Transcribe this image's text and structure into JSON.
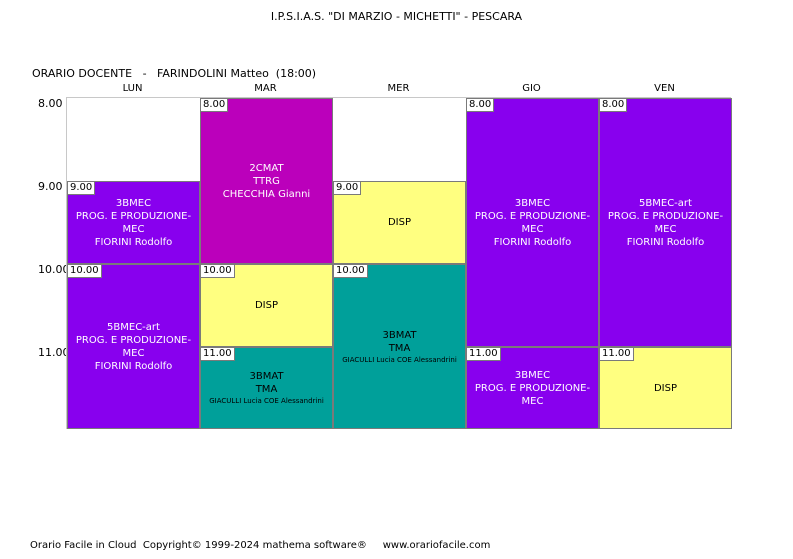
{
  "header": {
    "school": "I.P.S.I.A.S. \"DI MARZIO - MICHETTI\" - PESCARA",
    "teacher_line": "ORARIO DOCENTE   -   FARINDOLINI Matteo  (18:00)"
  },
  "days": [
    "LUN",
    "MAR",
    "MER",
    "GIO",
    "VEN"
  ],
  "times": [
    "8.00",
    "9.00",
    "10.00",
    "11.00"
  ],
  "cells": [
    {
      "start": "9.00",
      "line1": "3BMEC",
      "line2": "PROG. E PRODUZIONE-MEC",
      "line3": "FIORINI Rodolfo",
      "color": "purple"
    },
    {
      "start": "10.00",
      "line1": "5BMEC-art",
      "line2": "PROG. E PRODUZIONE-MEC",
      "line3": "FIORINI Rodolfo",
      "color": "purple"
    },
    {
      "start": "8.00",
      "line1": "2CMAT",
      "line2": "TTRG",
      "line3": "CHECCHIA Gianni",
      "color": "magenta"
    },
    {
      "start": "10.00",
      "line1": "DISP",
      "line2": "",
      "line3": "",
      "color": "yellow"
    },
    {
      "start": "11.00",
      "line1": "3BMAT",
      "line2": "TMA",
      "line3": "GIACULLI Lucia COE Alessandrini",
      "color": "teal"
    },
    {
      "start": "9.00",
      "line1": "DISP",
      "line2": "",
      "line3": "",
      "color": "yellow"
    },
    {
      "start": "10.00",
      "line1": "3BMAT",
      "line2": "TMA",
      "line3": "GIACULLI Lucia COE Alessandrini",
      "color": "teal"
    },
    {
      "start": "8.00",
      "line1": "3BMEC",
      "line2": "PROG. E PRODUZIONE-MEC",
      "line3": "FIORINI Rodolfo",
      "color": "purple"
    },
    {
      "start": "11.00",
      "line1": "3BMEC",
      "line2": "PROG. E PRODUZIONE-MEC",
      "line3": "",
      "color": "purple"
    },
    {
      "start": "8.00",
      "line1": "5BMEC-art",
      "line2": "PROG. E PRODUZIONE-MEC",
      "line3": "FIORINI Rodolfo",
      "color": "purple"
    },
    {
      "start": "11.00",
      "line1": "DISP",
      "line2": "",
      "line3": "",
      "color": "yellow"
    }
  ],
  "colors": {
    "purple": "#8800ee",
    "magenta": "#bb00bb",
    "yellow": "#ffff80",
    "teal": "#00a09a"
  },
  "footer": "Orario Facile in Cloud  Copyright© 1999-2024 mathema software®     www.orariofacile.com"
}
